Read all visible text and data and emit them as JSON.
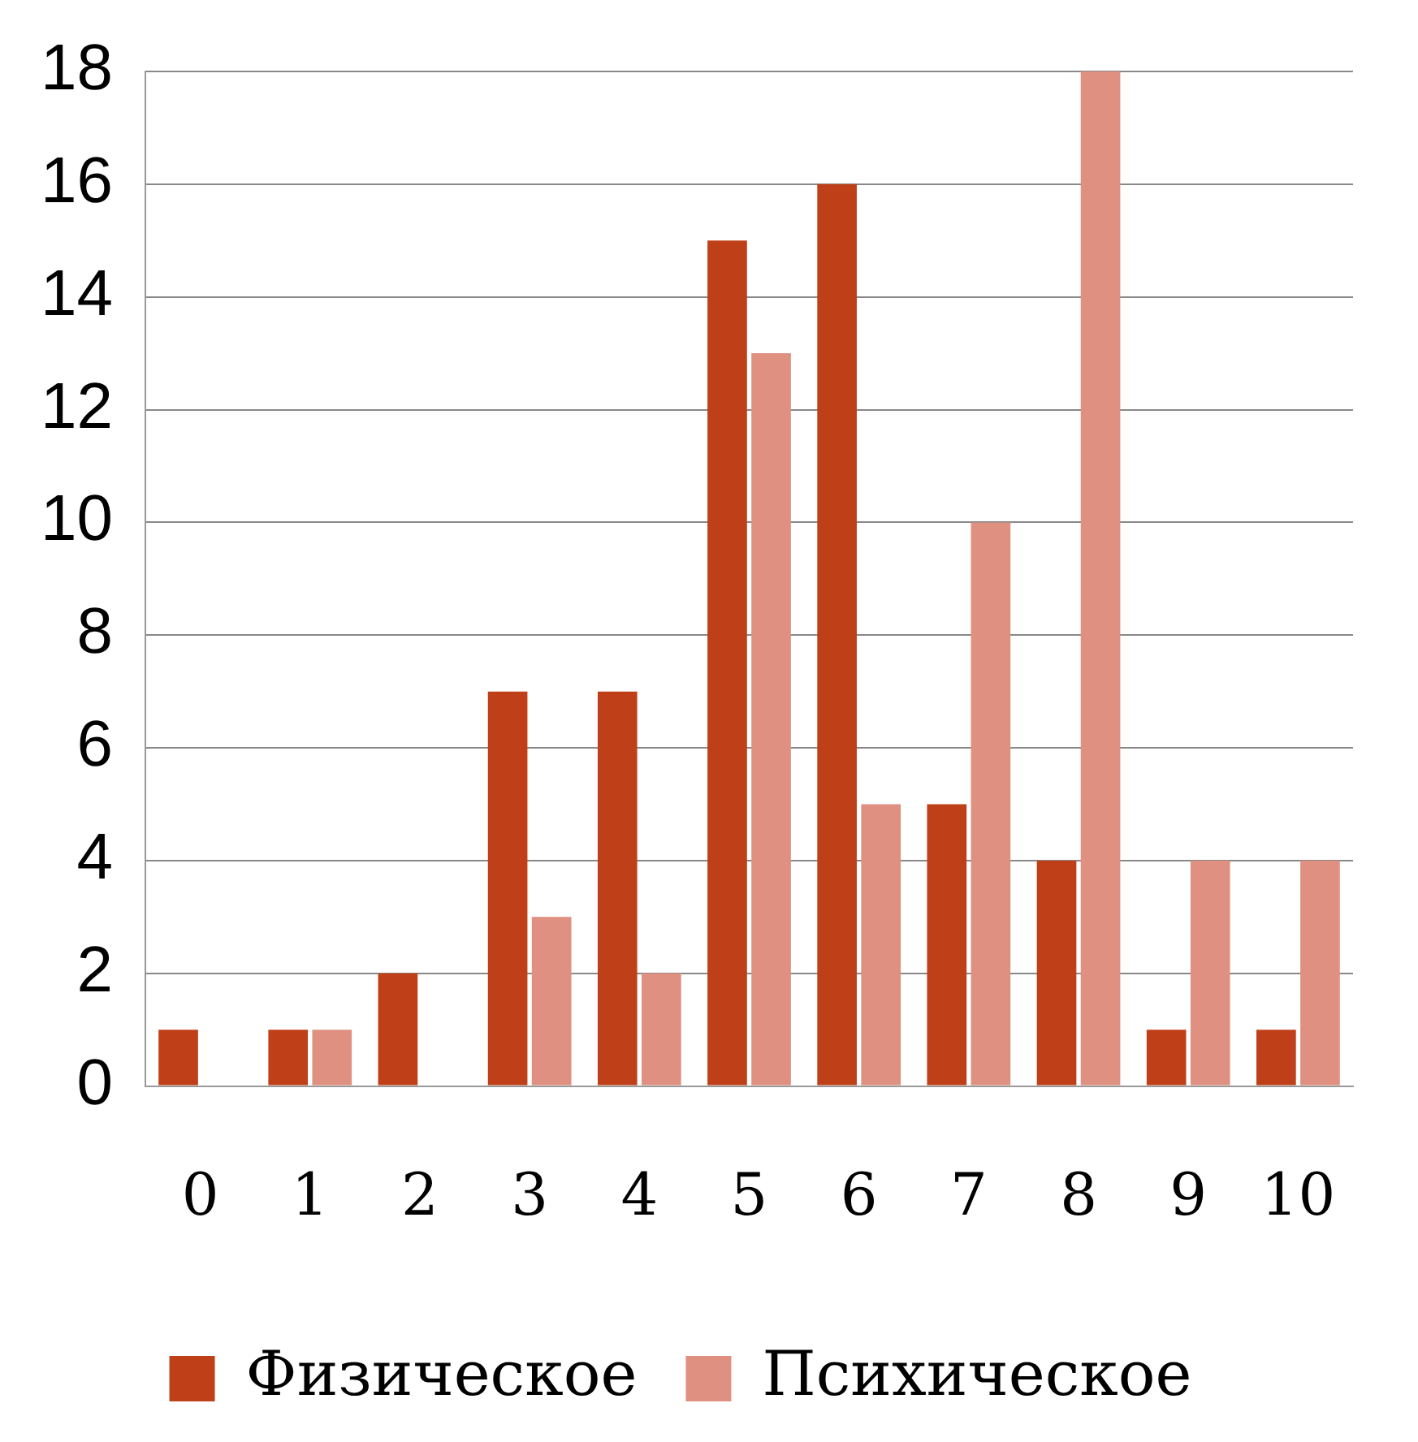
{
  "chart_data": {
    "type": "bar",
    "categories": [
      "0",
      "1",
      "2",
      "3",
      "4",
      "5",
      "6",
      "7",
      "8",
      "9",
      "10"
    ],
    "series": [
      {
        "name": "Физическое",
        "color": "#bf4018",
        "values": [
          1,
          1,
          2,
          7,
          7,
          15,
          16,
          5,
          4,
          1,
          1
        ]
      },
      {
        "name": "Психическое",
        "color": "#e09080",
        "values": [
          0,
          1,
          0,
          3,
          2,
          13,
          5,
          10,
          18,
          4,
          4
        ]
      }
    ],
    "ylim": [
      0,
      18
    ],
    "yticks": [
      0,
      2,
      4,
      6,
      8,
      10,
      12,
      14,
      16,
      18
    ],
    "grid": "y",
    "legend": "bottom"
  }
}
